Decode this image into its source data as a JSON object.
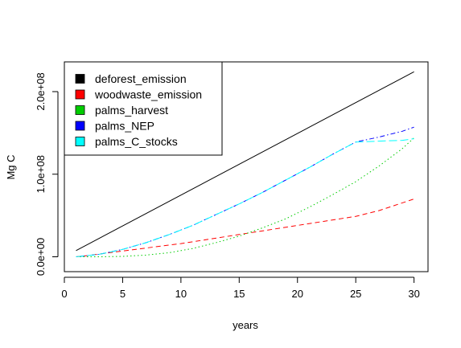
{
  "chart_data": {
    "type": "line",
    "xlabel": "years",
    "ylabel": "Mg C",
    "xlim": [
      0,
      31.2
    ],
    "ylim": [
      -18000000,
      236000000
    ],
    "xticks": [
      0,
      5,
      10,
      15,
      20,
      25,
      30
    ],
    "xtick_labels": [
      "0",
      "5",
      "10",
      "15",
      "20",
      "25",
      "30"
    ],
    "yticks": [
      0,
      100000000,
      200000000
    ],
    "ytick_labels": [
      "0.0e+00",
      "1.0e+08",
      "2.0e+08"
    ],
    "grid": false,
    "legend_position": "top-left",
    "series": [
      {
        "name": "deforest_emission",
        "color": "#000000",
        "dash": "solid",
        "x": [
          1,
          30
        ],
        "y": [
          7500000,
          224000000
        ]
      },
      {
        "name": "woodwaste_emission",
        "color": "#ff0000",
        "dash": "dashed",
        "x": [
          1,
          2,
          5,
          10,
          15,
          20,
          25,
          27,
          30
        ],
        "y": [
          0,
          1500000,
          7000000,
          16000000,
          27000000,
          38000000,
          49000000,
          56000000,
          70000000
        ]
      },
      {
        "name": "palms_harvest",
        "color": "#00cd00",
        "dash": "dotted",
        "x": [
          1,
          3,
          5,
          7,
          9,
          11,
          13,
          15,
          17,
          19,
          21,
          23,
          25,
          27,
          29,
          30
        ],
        "y": [
          0,
          0,
          500000,
          2000000,
          5000000,
          10000000,
          17000000,
          25000000,
          35000000,
          46000000,
          60000000,
          75000000,
          91000000,
          110000000,
          131000000,
          144000000
        ]
      },
      {
        "name": "palms_NEP",
        "color": "#0000ff",
        "dash": "dotdash",
        "x": [
          1,
          3,
          5,
          7,
          9,
          11,
          13,
          15,
          17,
          19,
          21,
          23,
          25,
          27,
          29,
          30
        ],
        "y": [
          0,
          3000000,
          9000000,
          17000000,
          27000000,
          38000000,
          51000000,
          64000000,
          78000000,
          93000000,
          108000000,
          124000000,
          139000000,
          145000000,
          152000000,
          157000000
        ]
      },
      {
        "name": "palms_C_stocks",
        "color": "#00ffff",
        "dash": "longdash",
        "x": [
          1,
          3,
          5,
          7,
          9,
          11,
          13,
          15,
          17,
          19,
          21,
          23,
          25,
          27,
          29,
          30
        ],
        "y": [
          0,
          3000000,
          9000000,
          17000000,
          27000000,
          38000000,
          51000000,
          64000000,
          78000000,
          93000000,
          108000000,
          124000000,
          139000000,
          140000000,
          141000000,
          143000000
        ]
      }
    ]
  }
}
